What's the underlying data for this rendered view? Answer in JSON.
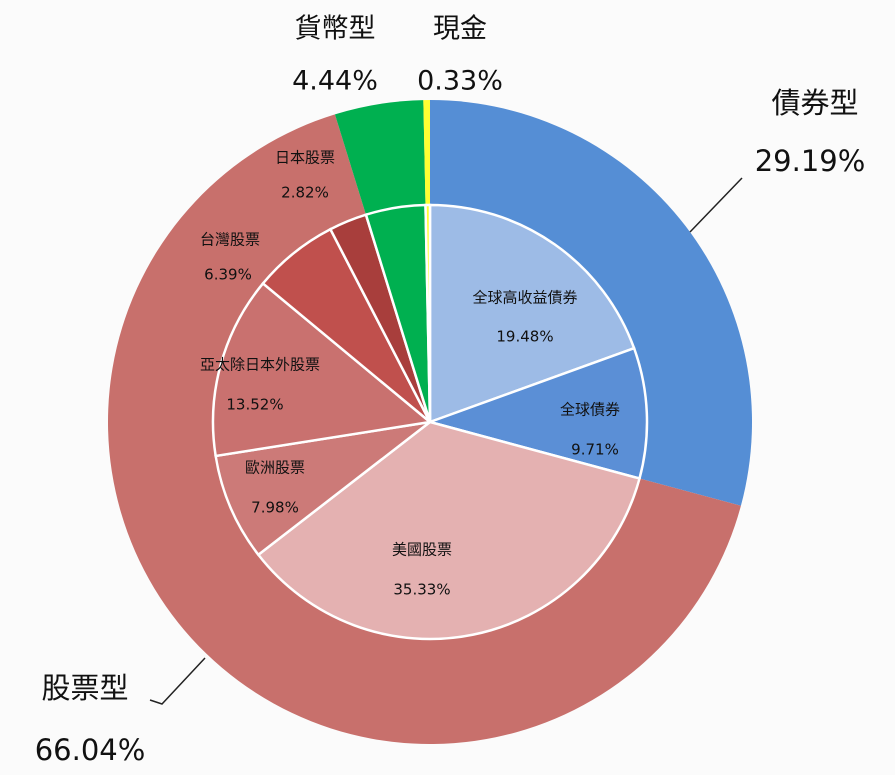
{
  "chart_data": {
    "type": "nested_pie",
    "outer": {
      "categories": [
        "債券型",
        "股票型",
        "貨幣型",
        "現金"
      ],
      "values": [
        29.19,
        66.04,
        4.44,
        0.33
      ],
      "value_labels": [
        "29.19%",
        "66.04%",
        "4.44%",
        "0.33%"
      ],
      "colors": [
        "#558ed5",
        "#c8706c",
        "#00b050",
        "#ffff33"
      ]
    },
    "inner": {
      "categories": [
        "全球高收益債券",
        "全球債券",
        "美國股票",
        "歐洲股票",
        "亞太除日本外股票",
        "台灣股票",
        "日本股票",
        null,
        null
      ],
      "values": [
        19.48,
        9.71,
        35.33,
        7.98,
        13.52,
        6.39,
        2.82,
        4.44,
        0.33
      ],
      "value_labels": [
        "19.48%",
        "9.71%",
        "35.33%",
        "7.98%",
        "13.52%",
        "6.39%",
        "2.82%",
        null,
        null
      ],
      "colors": [
        "#9dbbe6",
        "#5b8fd6",
        "#e4b1b1",
        "#cc7a78",
        "#c9716f",
        "#c0504d",
        "#a83e3c",
        "#00b050",
        "#ffff33"
      ]
    }
  }
}
